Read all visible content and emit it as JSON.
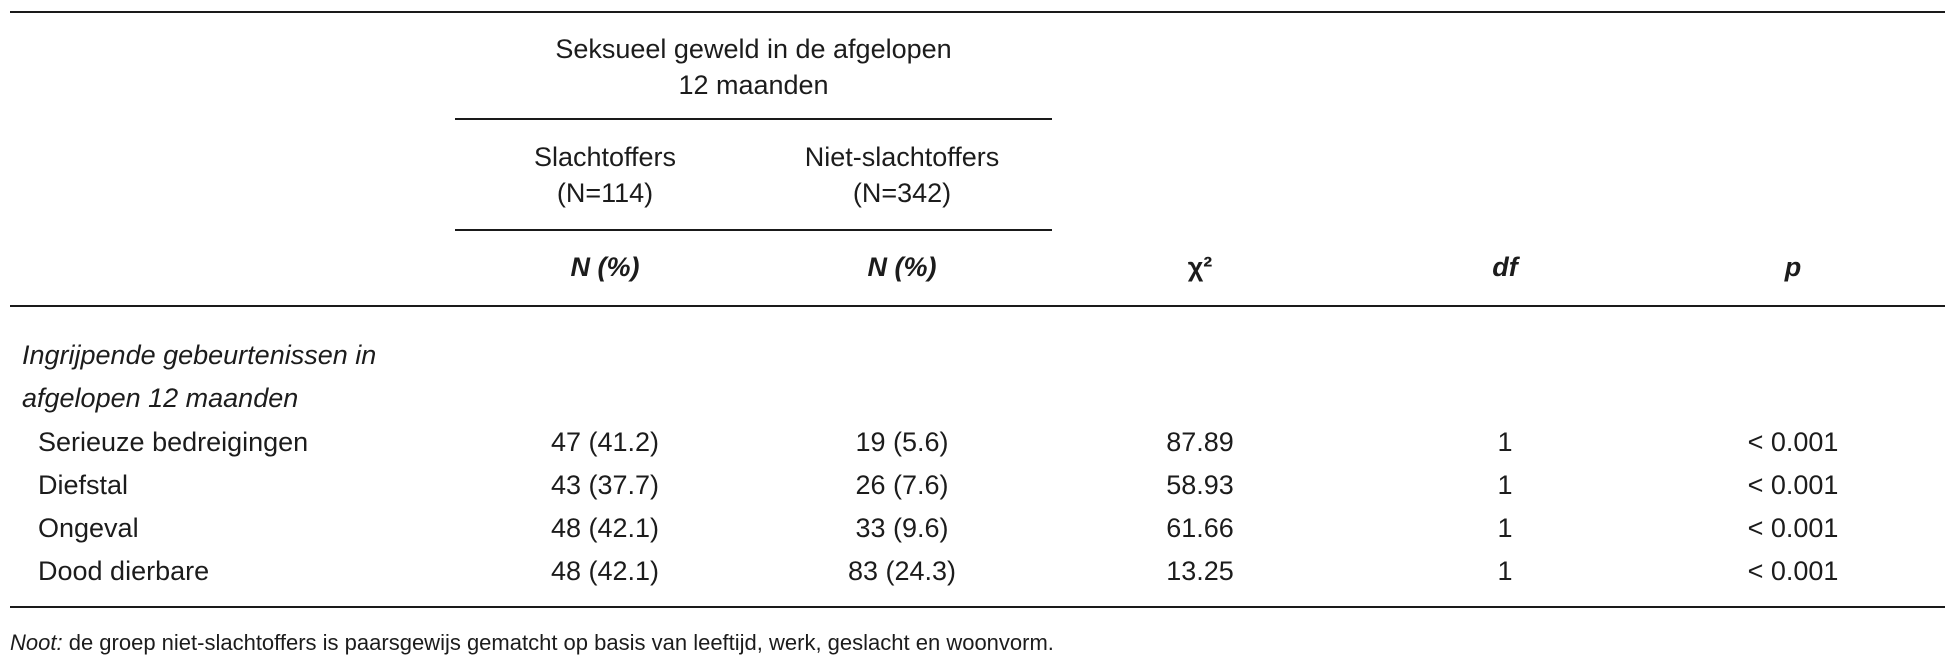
{
  "table": {
    "group_header": [
      "Seksueel geweld in de afgelopen",
      "12 maanden"
    ],
    "subgroups": [
      {
        "name": "Slachtoffers",
        "n": "(N=114)",
        "col_label": "N (%)"
      },
      {
        "name": "Niet-slachtoffers",
        "n": "(N=342)",
        "col_label": "N (%)"
      }
    ],
    "stat_headers": {
      "chi2": "χ²",
      "df": "df",
      "p": "p"
    },
    "section_title": [
      "Ingrijpende gebeurtenissen in",
      "afgelopen 12 maanden"
    ],
    "rows": [
      {
        "label": "Serieuze bedreigingen",
        "victims": "47 (41.2)",
        "non_victims": "19 (5.6)",
        "chi2": "87.89",
        "df": "1",
        "p": "< 0.001"
      },
      {
        "label": "Diefstal",
        "victims": "43 (37.7)",
        "non_victims": "26 (7.6)",
        "chi2": "58.93",
        "df": "1",
        "p": "< 0.001"
      },
      {
        "label": "Ongeval",
        "victims": "48 (42.1)",
        "non_victims": "33 (9.6)",
        "chi2": "61.66",
        "df": "1",
        "p": "< 0.001"
      },
      {
        "label": "Dood dierbare",
        "victims": "48 (42.1)",
        "non_victims": "83 (24.3)",
        "chi2": "13.25",
        "df": "1",
        "p": "< 0.001"
      }
    ],
    "note": {
      "lead": "Noot:",
      "text": " de groep niet-slachtoffers is paarsgewijs gematcht op basis van leeftijd, werk, geslacht en woonvorm."
    }
  }
}
